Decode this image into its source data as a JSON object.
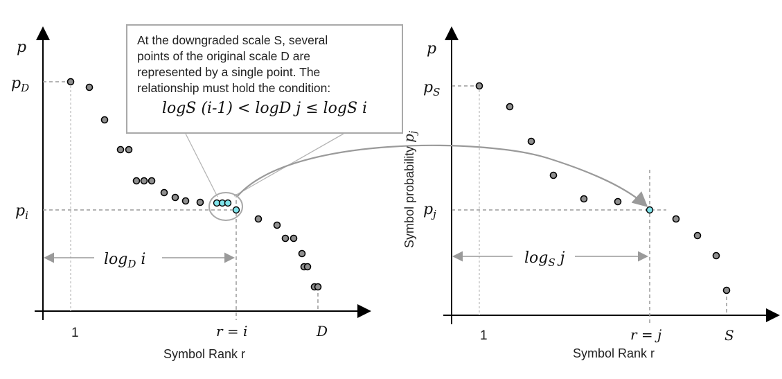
{
  "callout": {
    "line1": "At the downgraded scale S, several",
    "line2": "points of the original scale D are",
    "line3": "represented by a single point. The",
    "line4": "relationship must hold the condition:",
    "formula": "logS (i-1) < logD j ≤ logS i"
  },
  "left_plot": {
    "y_axis_label": "p",
    "p_top": "pD",
    "p_mid": "pi",
    "tick_one": "1",
    "tick_r": "r = i",
    "tick_end": "D",
    "span_label": "logD i",
    "x_axis_label": "Symbol Rank r"
  },
  "right_plot": {
    "y_axis_label": "p",
    "rotated_label": "Symbol probability pj",
    "p_top": "pS",
    "p_mid": "pj",
    "tick_one": "1",
    "tick_r": "r = j",
    "tick_end": "S",
    "span_label": "logS j",
    "x_axis_label": "Symbol Rank r"
  },
  "colors": {
    "point": "#8f8f8f",
    "highlight": "#7fe3ea",
    "axis": "#000000",
    "guide": "#9a9a9a"
  }
}
